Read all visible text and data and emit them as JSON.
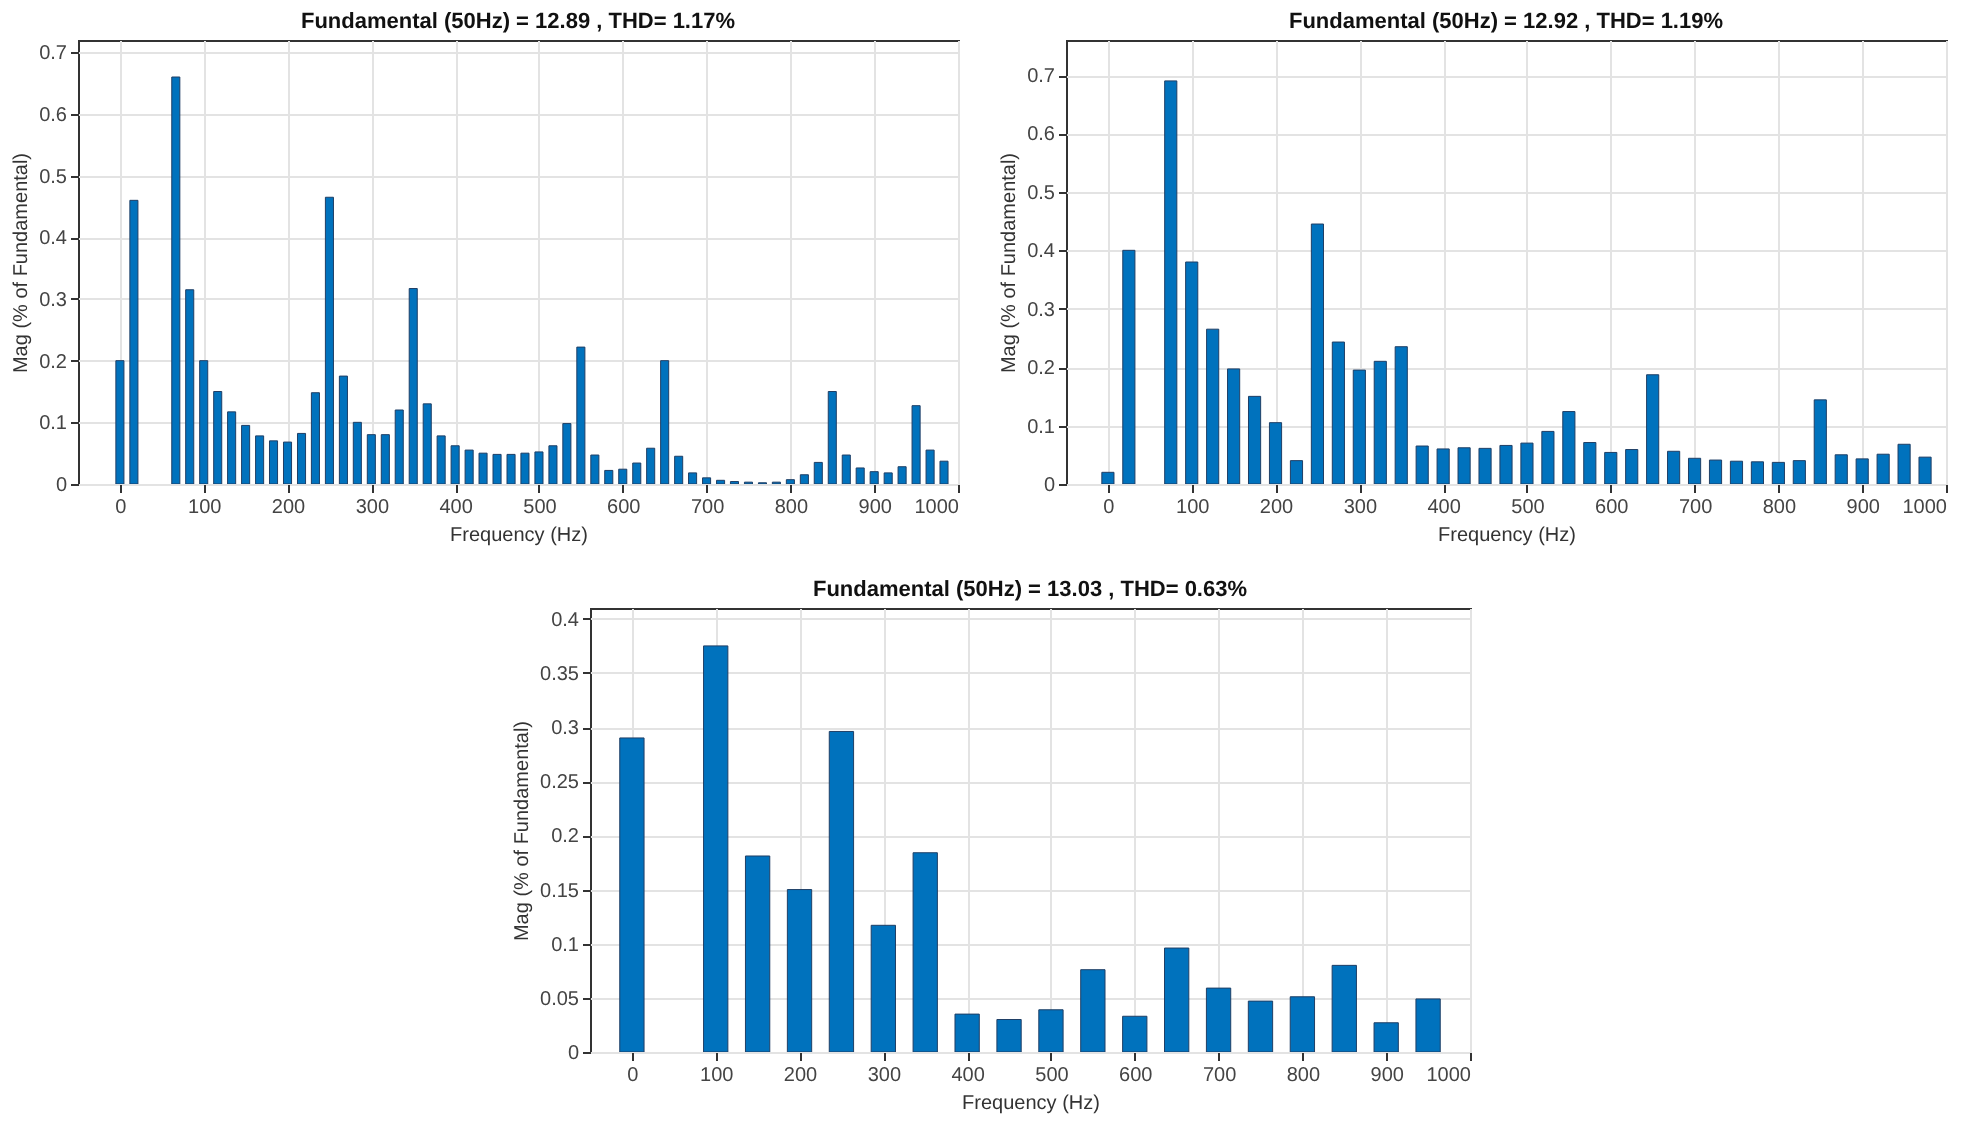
{
  "chart_data": [
    {
      "type": "bar",
      "title": "Fundamental (50Hz) = 12.89 , THD= 1.17%",
      "xlabel": "Frequency (Hz)",
      "ylabel": "Mag (% of Fundamental)",
      "color": "#0072bd",
      "x": [
        0,
        16.7,
        33.3,
        50,
        66.7,
        83.3,
        100,
        116.7,
        133.3,
        150,
        166.7,
        183.3,
        200,
        216.7,
        233.3,
        250,
        266.7,
        283.3,
        300,
        316.7,
        333.3,
        350,
        366.7,
        383.3,
        400,
        416.7,
        433.3,
        450,
        466.7,
        483.3,
        500,
        516.7,
        533.3,
        550,
        566.7,
        583.3,
        600,
        616.7,
        633.3,
        650,
        666.7,
        683.3,
        700,
        716.7,
        733.3,
        750,
        766.7,
        783.3,
        800,
        816.7,
        833.3,
        850,
        866.7,
        883.3,
        900,
        916.7,
        933.3,
        950,
        966.7,
        983.3
      ],
      "values": [
        0.2,
        0.46,
        null,
        null,
        0.66,
        0.315,
        0.2,
        0.15,
        0.117,
        0.095,
        0.078,
        0.07,
        0.068,
        0.082,
        0.148,
        0.465,
        0.175,
        0.1,
        0.08,
        0.08,
        0.12,
        0.317,
        0.13,
        0.078,
        0.062,
        0.055,
        0.05,
        0.048,
        0.048,
        0.05,
        0.052,
        0.062,
        0.098,
        0.222,
        0.047,
        0.022,
        0.024,
        0.034,
        0.058,
        0.2,
        0.045,
        0.018,
        0.01,
        0.006,
        0.004,
        0.003,
        0.002,
        0.003,
        0.007,
        0.015,
        0.035,
        0.15,
        0.047,
        0.026,
        0.02,
        0.018,
        0.028,
        0.127,
        0.055,
        0.037
      ],
      "xlim": [
        -50,
        1000
      ],
      "xticks": [
        0,
        100,
        200,
        300,
        400,
        500,
        600,
        700,
        800,
        900,
        1000
      ],
      "ylim": [
        0,
        0.72
      ],
      "yticks": [
        0,
        0.1,
        0.2,
        0.3,
        0.4,
        0.5,
        0.6,
        0.7
      ],
      "grid": true
    },
    {
      "type": "bar",
      "title": "Fundamental (50Hz) = 12.92 , THD= 1.19%",
      "xlabel": "Frequency (Hz)",
      "ylabel": "Mag (% of Fundamental)",
      "color": "#0072bd",
      "x": [
        0,
        25,
        50,
        75,
        100,
        125,
        150,
        175,
        200,
        225,
        250,
        275,
        300,
        325,
        350,
        375,
        400,
        425,
        450,
        475,
        500,
        525,
        550,
        575,
        600,
        625,
        650,
        675,
        700,
        725,
        750,
        775,
        800,
        825,
        850,
        875,
        900,
        925,
        950,
        975
      ],
      "values": [
        0.02,
        0.4,
        null,
        0.69,
        0.38,
        0.265,
        0.197,
        0.15,
        0.105,
        0.04,
        0.445,
        0.243,
        0.195,
        0.21,
        0.235,
        0.065,
        0.06,
        0.062,
        0.061,
        0.066,
        0.07,
        0.09,
        0.124,
        0.071,
        0.054,
        0.059,
        0.187,
        0.056,
        0.044,
        0.041,
        0.039,
        0.038,
        0.037,
        0.04,
        0.144,
        0.05,
        0.043,
        0.051,
        0.068,
        0.046
      ],
      "xlim": [
        -50,
        1000
      ],
      "xticks": [
        0,
        100,
        200,
        300,
        400,
        500,
        600,
        700,
        800,
        900,
        1000
      ],
      "ylim": [
        0,
        0.76
      ],
      "yticks": [
        0,
        0.1,
        0.2,
        0.3,
        0.4,
        0.5,
        0.6,
        0.7
      ],
      "grid": true
    },
    {
      "type": "bar",
      "title": "Fundamental (50Hz) = 13.03 , THD= 0.63%",
      "xlabel": "Frequency (Hz)",
      "ylabel": "Mag (% of Fundamental)",
      "color": "#0072bd",
      "x": [
        0,
        50,
        100,
        150,
        200,
        250,
        300,
        350,
        400,
        450,
        500,
        550,
        600,
        650,
        700,
        750,
        800,
        850,
        900,
        950
      ],
      "values": [
        0.29,
        null,
        0.375,
        0.181,
        0.15,
        0.296,
        0.117,
        0.184,
        0.035,
        0.03,
        0.039,
        0.076,
        0.033,
        0.096,
        0.059,
        0.047,
        0.051,
        0.08,
        0.027,
        0.049
      ],
      "xlim": [
        -50,
        1000
      ],
      "xticks": [
        0,
        100,
        200,
        300,
        400,
        500,
        600,
        700,
        800,
        900,
        1000
      ],
      "ylim": [
        0,
        0.41
      ],
      "yticks": [
        0,
        0.05,
        0.1,
        0.15,
        0.2,
        0.25,
        0.3,
        0.35,
        0.4
      ],
      "grid": true
    }
  ]
}
